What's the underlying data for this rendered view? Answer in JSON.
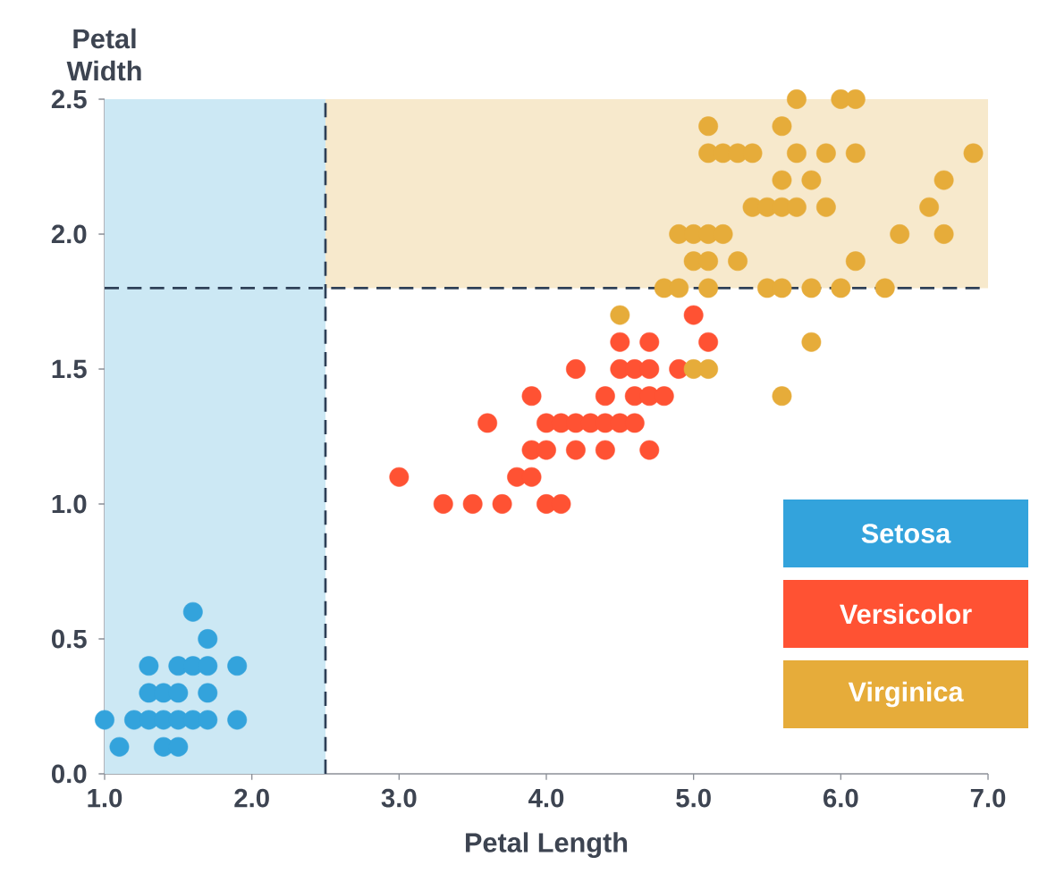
{
  "chart_data": {
    "type": "scatter",
    "xlabel": "Petal Length",
    "ylabel": "Petal Width",
    "xlim": [
      1,
      7
    ],
    "ylim": [
      0,
      2.5
    ],
    "xticks": [
      {
        "value": 1,
        "label": "1.0"
      },
      {
        "value": 2,
        "label": "2.0"
      },
      {
        "value": 3,
        "label": "3.0"
      },
      {
        "value": 4,
        "label": "4.0"
      },
      {
        "value": 5,
        "label": "5.0"
      },
      {
        "value": 6,
        "label": "6.0"
      },
      {
        "value": 7,
        "label": "7.0"
      }
    ],
    "yticks": [
      {
        "value": 0,
        "label": "0.0"
      },
      {
        "value": 0.5,
        "label": "0.5"
      },
      {
        "value": 1,
        "label": "1.0"
      },
      {
        "value": 1.5,
        "label": "1.5"
      },
      {
        "value": 2,
        "label": "2.0"
      },
      {
        "value": 2.5,
        "label": "2.5"
      }
    ],
    "grid": false,
    "legend": "bottom right",
    "bands": [
      {
        "axis": "x",
        "from": 1.0,
        "to": 2.5,
        "color": "#cce8f4"
      },
      {
        "axis": "y",
        "from": 1.8,
        "to": 2.5,
        "color": "#f7e9cc"
      }
    ],
    "ref_lines": [
      {
        "axis": "x",
        "value": 2.5,
        "color": "#2e4057",
        "line_style": "dashed"
      },
      {
        "axis": "y",
        "value": 1.8,
        "color": "#2e4057",
        "line_style": "dashed"
      }
    ],
    "series": [
      {
        "name": "Setosa",
        "color": "#33a3dc",
        "x": [
          1.0,
          1.1,
          1.2,
          1.3,
          1.3,
          1.3,
          1.4,
          1.4,
          1.4,
          1.5,
          1.5,
          1.5,
          1.5,
          1.6,
          1.6,
          1.6,
          1.7,
          1.7,
          1.7,
          1.7,
          1.9,
          1.9
        ],
        "values": [
          0.2,
          0.1,
          0.2,
          0.2,
          0.3,
          0.4,
          0.1,
          0.2,
          0.3,
          0.1,
          0.2,
          0.3,
          0.4,
          0.2,
          0.4,
          0.6,
          0.2,
          0.3,
          0.4,
          0.5,
          0.2,
          0.4
        ]
      },
      {
        "name": "Versicolor",
        "color": "#ff5233",
        "x": [
          3.0,
          3.3,
          3.5,
          3.6,
          3.7,
          3.8,
          3.9,
          3.9,
          3.9,
          4.0,
          4.0,
          4.0,
          4.1,
          4.1,
          4.2,
          4.2,
          4.2,
          4.3,
          4.4,
          4.4,
          4.4,
          4.5,
          4.5,
          4.5,
          4.6,
          4.6,
          4.6,
          4.7,
          4.7,
          4.7,
          4.7,
          4.8,
          4.9,
          5.0,
          5.1
        ],
        "values": [
          1.1,
          1.0,
          1.0,
          1.3,
          1.0,
          1.1,
          1.1,
          1.2,
          1.4,
          1.0,
          1.2,
          1.3,
          1.0,
          1.3,
          1.2,
          1.3,
          1.5,
          1.3,
          1.2,
          1.3,
          1.4,
          1.3,
          1.5,
          1.6,
          1.3,
          1.4,
          1.5,
          1.2,
          1.4,
          1.5,
          1.6,
          1.4,
          1.5,
          1.7,
          1.6
        ]
      },
      {
        "name": "Virginica",
        "color": "#e6ac3a",
        "x": [
          4.5,
          4.8,
          4.9,
          4.9,
          5.0,
          5.0,
          5.0,
          5.1,
          5.1,
          5.1,
          5.1,
          5.1,
          5.1,
          5.2,
          5.2,
          5.3,
          5.3,
          5.4,
          5.4,
          5.5,
          5.5,
          5.6,
          5.6,
          5.6,
          5.6,
          5.6,
          5.7,
          5.7,
          5.7,
          5.8,
          5.8,
          5.8,
          5.9,
          5.9,
          6.0,
          6.0,
          6.1,
          6.1,
          6.1,
          6.3,
          6.4,
          6.6,
          6.7,
          6.7,
          6.9
        ],
        "values": [
          1.7,
          1.8,
          1.8,
          2.0,
          1.5,
          1.9,
          2.0,
          1.5,
          1.8,
          1.9,
          2.0,
          2.3,
          2.4,
          2.0,
          2.3,
          1.9,
          2.3,
          2.1,
          2.3,
          1.8,
          2.1,
          1.4,
          1.8,
          2.1,
          2.2,
          2.4,
          2.1,
          2.3,
          2.5,
          1.6,
          1.8,
          2.2,
          2.1,
          2.3,
          1.8,
          2.5,
          1.9,
          2.3,
          2.5,
          1.8,
          2.0,
          2.1,
          2.0,
          2.2,
          2.3
        ]
      }
    ]
  }
}
